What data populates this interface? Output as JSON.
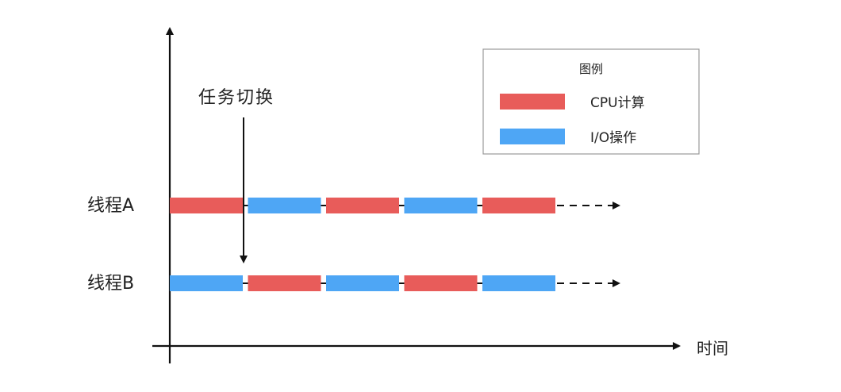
{
  "title": "任务切换",
  "x_axis_label": "时间",
  "legend": {
    "title": "图例",
    "items": [
      {
        "key": "cpu",
        "label": "CPU计算",
        "color": "#e85c5a"
      },
      {
        "key": "io",
        "label": "I/O操作",
        "color": "#4ea6f5"
      }
    ]
  },
  "threads": [
    {
      "name": "线程A",
      "segments": [
        "cpu",
        "io",
        "cpu",
        "io",
        "cpu"
      ]
    },
    {
      "name": "线程B",
      "segments": [
        "io",
        "cpu",
        "io",
        "cpu",
        "io"
      ]
    }
  ],
  "colors": {
    "cpu": "#e85c5a",
    "io": "#4ea6f5",
    "axis": "#111111",
    "legend_border": "#999999"
  }
}
